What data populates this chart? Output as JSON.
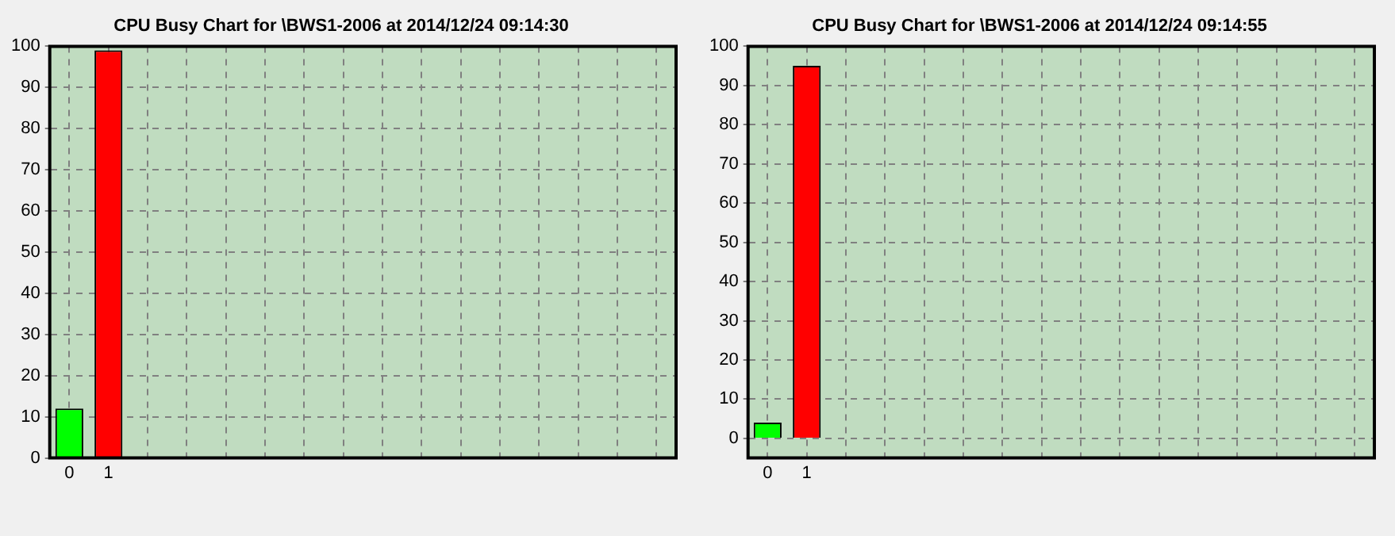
{
  "chart_data": [
    {
      "type": "bar",
      "title": "CPU Busy Chart for \\BWS1-2006 at 2014/12/24 09:14:30",
      "categories": [
        "0",
        "1",
        null,
        null,
        null,
        null,
        null,
        null,
        null,
        null,
        null,
        null,
        null,
        null,
        null,
        null
      ],
      "values": [
        12,
        99,
        null,
        null,
        null,
        null,
        null,
        null,
        null,
        null,
        null,
        null,
        null,
        null,
        null,
        null
      ],
      "colors": [
        "#00ff00",
        "#ff0000",
        "#00ff00",
        "#00ff00",
        "#00ff00",
        "#00ff00",
        "#00ff00",
        "#00ff00",
        "#00ff00",
        "#00ff00",
        "#00ff00",
        "#00ff00",
        "#00ff00",
        "#00ff00",
        "#00ff00",
        "#00ff00"
      ],
      "ylim": [
        0,
        100
      ],
      "yticks": [
        0,
        10,
        20,
        30,
        40,
        50,
        60,
        70,
        80,
        90,
        100
      ],
      "grid": true,
      "legend": false
    },
    {
      "type": "bar",
      "title": "CPU Busy Chart for \\BWS1-2006 at 2014/12/24 09:14:55",
      "categories": [
        "0",
        "1",
        null,
        null,
        null,
        null,
        null,
        null,
        null,
        null,
        null,
        null,
        null,
        null,
        null,
        null
      ],
      "values": [
        4,
        95,
        null,
        null,
        null,
        null,
        null,
        null,
        null,
        null,
        null,
        null,
        null,
        null,
        null,
        null
      ],
      "colors": [
        "#00ff00",
        "#ff0000",
        "#00ff00",
        "#00ff00",
        "#00ff00",
        "#00ff00",
        "#00ff00",
        "#00ff00",
        "#00ff00",
        "#00ff00",
        "#00ff00",
        "#00ff00",
        "#00ff00",
        "#00ff00",
        "#00ff00",
        "#00ff00"
      ],
      "ylim": [
        -5,
        100
      ],
      "yticks": [
        0,
        10,
        20,
        30,
        40,
        50,
        60,
        70,
        80,
        90,
        100
      ],
      "grid": true,
      "legend": false
    }
  ]
}
